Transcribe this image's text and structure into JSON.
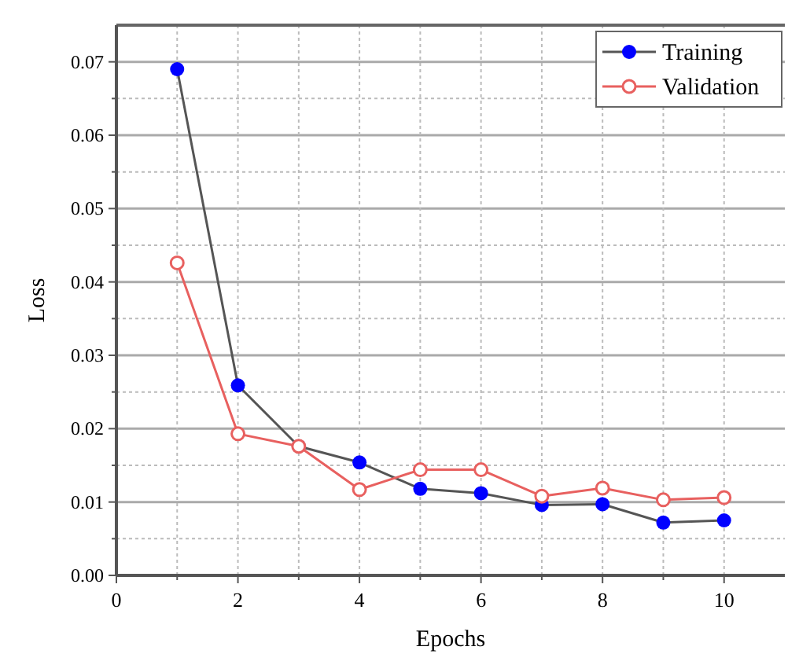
{
  "chart_data": {
    "type": "line",
    "xlabel": "Epochs",
    "ylabel": "Loss",
    "x": [
      1,
      2,
      3,
      4,
      5,
      6,
      7,
      8,
      9,
      10
    ],
    "series": [
      {
        "name": "Training",
        "color": "#0000ff",
        "values": [
          0.069,
          0.0259,
          0.0176,
          0.0154,
          0.0118,
          0.0112,
          0.0096,
          0.0097,
          0.0072,
          0.0075
        ]
      },
      {
        "name": "Validation",
        "color": "#e8605f",
        "values": [
          0.0426,
          0.0193,
          0.0176,
          0.0117,
          0.0144,
          0.0144,
          0.0108,
          0.0119,
          0.0103,
          0.0106
        ]
      }
    ],
    "xlim": [
      0,
      11
    ],
    "xticks": [
      0,
      {
        "value": 1,
        "label": null
      },
      2,
      {
        "value": 3,
        "label": null
      },
      4,
      {
        "value": 5,
        "label": null
      },
      6,
      {
        "value": 7,
        "label": null
      },
      8,
      {
        "value": 9,
        "label": null
      },
      10
    ],
    "ylim": [
      0,
      0.075
    ],
    "yticks": [
      {
        "value": 0,
        "label": "0.00"
      },
      {
        "value": 0.005,
        "label": null
      },
      {
        "value": 0.01,
        "label": "0.01"
      },
      {
        "value": 0.015,
        "label": null
      },
      {
        "value": 0.02,
        "label": "0.02"
      },
      {
        "value": 0.025,
        "label": null
      },
      {
        "value": 0.03,
        "label": "0.03"
      },
      {
        "value": 0.035,
        "label": null
      },
      {
        "value": 0.04,
        "label": "0.04"
      },
      {
        "value": 0.045,
        "label": null
      },
      {
        "value": 0.05,
        "label": "0.05"
      },
      {
        "value": 0.055,
        "label": null
      },
      {
        "value": 0.06,
        "label": "0.06"
      },
      {
        "value": 0.065,
        "label": null
      },
      {
        "value": 0.07,
        "label": "0.07"
      }
    ],
    "grid": true,
    "legend": "top right",
    "marker": "circle",
    "line_style": "solid"
  }
}
